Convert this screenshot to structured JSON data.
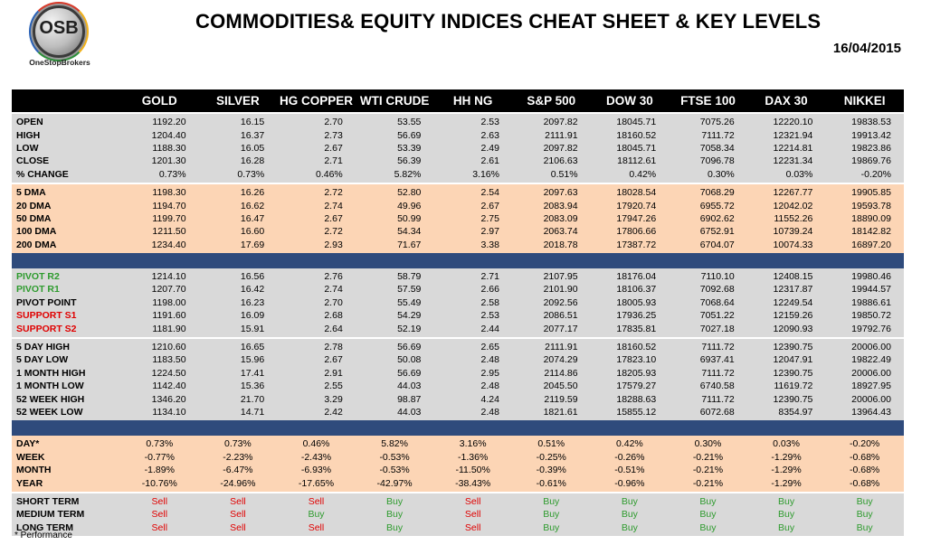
{
  "logo": {
    "text": "OSB",
    "subtitle": "OneStopBrokers"
  },
  "title": "COMMODITIES& EQUITY INDICES CHEAT SHEET & KEY LEVELS",
  "date": "16/04/2015",
  "columns": [
    "GOLD",
    "SILVER",
    "HG COPPER",
    "WTI CRUDE",
    "HH NG",
    "S&P 500",
    "DOW 30",
    "FTSE 100",
    "DAX 30",
    "NIKKEI"
  ],
  "groups": [
    {
      "style": "grey",
      "rows": [
        {
          "label": "OPEN",
          "values": [
            "1192.20",
            "16.15",
            "2.70",
            "53.55",
            "2.53",
            "2097.82",
            "18045.71",
            "7075.26",
            "12220.10",
            "19838.53"
          ]
        },
        {
          "label": "HIGH",
          "values": [
            "1204.40",
            "16.37",
            "2.73",
            "56.69",
            "2.63",
            "2111.91",
            "18160.52",
            "7111.72",
            "12321.94",
            "19913.42"
          ]
        },
        {
          "label": "LOW",
          "values": [
            "1188.30",
            "16.05",
            "2.67",
            "53.39",
            "2.49",
            "2097.82",
            "18045.71",
            "7058.34",
            "12214.81",
            "19823.86"
          ]
        },
        {
          "label": "CLOSE",
          "values": [
            "1201.30",
            "16.28",
            "2.71",
            "56.39",
            "2.61",
            "2106.63",
            "18112.61",
            "7096.78",
            "12231.34",
            "19869.76"
          ]
        },
        {
          "label": "% CHANGE",
          "values": [
            "0.73%",
            "0.73%",
            "0.46%",
            "5.82%",
            "3.16%",
            "0.51%",
            "0.42%",
            "0.30%",
            "0.03%",
            "-0.20%"
          ]
        }
      ]
    },
    {
      "style": "peach",
      "rows": [
        {
          "label": "5 DMA",
          "values": [
            "1198.30",
            "16.26",
            "2.72",
            "52.80",
            "2.54",
            "2097.63",
            "18028.54",
            "7068.29",
            "12267.77",
            "19905.85"
          ]
        },
        {
          "label": "20 DMA",
          "values": [
            "1194.70",
            "16.62",
            "2.74",
            "49.96",
            "2.67",
            "2083.94",
            "17920.74",
            "6955.72",
            "12042.02",
            "19593.78"
          ]
        },
        {
          "label": "50 DMA",
          "values": [
            "1199.70",
            "16.47",
            "2.67",
            "50.99",
            "2.75",
            "2083.09",
            "17947.26",
            "6902.62",
            "11552.26",
            "18890.09"
          ]
        },
        {
          "label": "100 DMA",
          "values": [
            "1211.50",
            "16.60",
            "2.72",
            "54.34",
            "2.97",
            "2063.74",
            "17806.66",
            "6752.91",
            "10739.24",
            "18142.82"
          ]
        },
        {
          "label": "200 DMA",
          "values": [
            "1234.40",
            "17.69",
            "2.93",
            "71.67",
            "3.38",
            "2018.78",
            "17387.72",
            "6704.07",
            "10074.33",
            "16897.20"
          ]
        }
      ]
    },
    {
      "style": "grey",
      "separator": true,
      "rows": [
        {
          "label": "PIVOT R2",
          "color": "green",
          "values": [
            "1214.10",
            "16.56",
            "2.76",
            "58.79",
            "2.71",
            "2107.95",
            "18176.04",
            "7110.10",
            "12408.15",
            "19980.46"
          ]
        },
        {
          "label": "PIVOT R1",
          "color": "green",
          "values": [
            "1207.70",
            "16.42",
            "2.74",
            "57.59",
            "2.66",
            "2101.90",
            "18106.37",
            "7092.68",
            "12317.87",
            "19944.57"
          ]
        },
        {
          "label": "PIVOT POINT",
          "values": [
            "1198.00",
            "16.23",
            "2.70",
            "55.49",
            "2.58",
            "2092.56",
            "18005.93",
            "7068.64",
            "12249.54",
            "19886.61"
          ]
        },
        {
          "label": "SUPPORT S1",
          "color": "red",
          "values": [
            "1191.60",
            "16.09",
            "2.68",
            "54.29",
            "2.53",
            "2086.51",
            "17936.25",
            "7051.22",
            "12159.26",
            "19850.72"
          ]
        },
        {
          "label": "SUPPORT S2",
          "color": "red",
          "values": [
            "1181.90",
            "15.91",
            "2.64",
            "52.19",
            "2.44",
            "2077.17",
            "17835.81",
            "7027.18",
            "12090.93",
            "19792.76"
          ]
        }
      ]
    },
    {
      "style": "grey",
      "rows": [
        {
          "label": "5 DAY HIGH",
          "values": [
            "1210.60",
            "16.65",
            "2.78",
            "56.69",
            "2.65",
            "2111.91",
            "18160.52",
            "7111.72",
            "12390.75",
            "20006.00"
          ]
        },
        {
          "label": "5 DAY LOW",
          "values": [
            "1183.50",
            "15.96",
            "2.67",
            "50.08",
            "2.48",
            "2074.29",
            "17823.10",
            "6937.41",
            "12047.91",
            "19822.49"
          ]
        },
        {
          "label": "1 MONTH HIGH",
          "values": [
            "1224.50",
            "17.41",
            "2.91",
            "56.69",
            "2.95",
            "2114.86",
            "18205.93",
            "7111.72",
            "12390.75",
            "20006.00"
          ]
        },
        {
          "label": "1 MONTH LOW",
          "values": [
            "1142.40",
            "15.36",
            "2.55",
            "44.03",
            "2.48",
            "2045.50",
            "17579.27",
            "6740.58",
            "11619.72",
            "18927.95"
          ]
        },
        {
          "label": "52 WEEK HIGH",
          "values": [
            "1346.20",
            "21.70",
            "3.29",
            "98.87",
            "4.24",
            "2119.59",
            "18288.63",
            "7111.72",
            "12390.75",
            "20006.00"
          ]
        },
        {
          "label": "52 WEEK LOW",
          "values": [
            "1134.10",
            "14.71",
            "2.42",
            "44.03",
            "2.48",
            "1821.61",
            "15855.12",
            "6072.68",
            "8354.97",
            "13964.43"
          ]
        }
      ]
    },
    {
      "style": "peach",
      "separator": true,
      "center": true,
      "rows": [
        {
          "label": "DAY*",
          "values": [
            "0.73%",
            "0.73%",
            "0.46%",
            "5.82%",
            "3.16%",
            "0.51%",
            "0.42%",
            "0.30%",
            "0.03%",
            "-0.20%"
          ]
        },
        {
          "label": "WEEK",
          "values": [
            "-0.77%",
            "-2.23%",
            "-2.43%",
            "-0.53%",
            "-1.36%",
            "-0.25%",
            "-0.26%",
            "-0.21%",
            "-1.29%",
            "-0.68%"
          ]
        },
        {
          "label": "MONTH",
          "values": [
            "-1.89%",
            "-6.47%",
            "-6.93%",
            "-0.53%",
            "-11.50%",
            "-0.39%",
            "-0.51%",
            "-0.21%",
            "-1.29%",
            "-0.68%"
          ]
        },
        {
          "label": "YEAR",
          "values": [
            "-10.76%",
            "-24.96%",
            "-17.65%",
            "-42.97%",
            "-38.43%",
            "-0.61%",
            "-0.96%",
            "-0.21%",
            "-1.29%",
            "-0.68%"
          ]
        }
      ]
    },
    {
      "style": "grey",
      "center": true,
      "signals": true,
      "rows": [
        {
          "label": "SHORT TERM",
          "values": [
            "Sell",
            "Sell",
            "Sell",
            "Buy",
            "Sell",
            "Buy",
            "Buy",
            "Buy",
            "Buy",
            "Buy"
          ]
        },
        {
          "label": "MEDIUM TERM",
          "values": [
            "Sell",
            "Sell",
            "Buy",
            "Buy",
            "Sell",
            "Buy",
            "Buy",
            "Buy",
            "Buy",
            "Buy"
          ]
        },
        {
          "label": "LONG TERM",
          "values": [
            "Sell",
            "Sell",
            "Sell",
            "Buy",
            "Sell",
            "Buy",
            "Buy",
            "Buy",
            "Buy",
            "Buy"
          ]
        }
      ]
    }
  ],
  "footnote": "* Performance"
}
